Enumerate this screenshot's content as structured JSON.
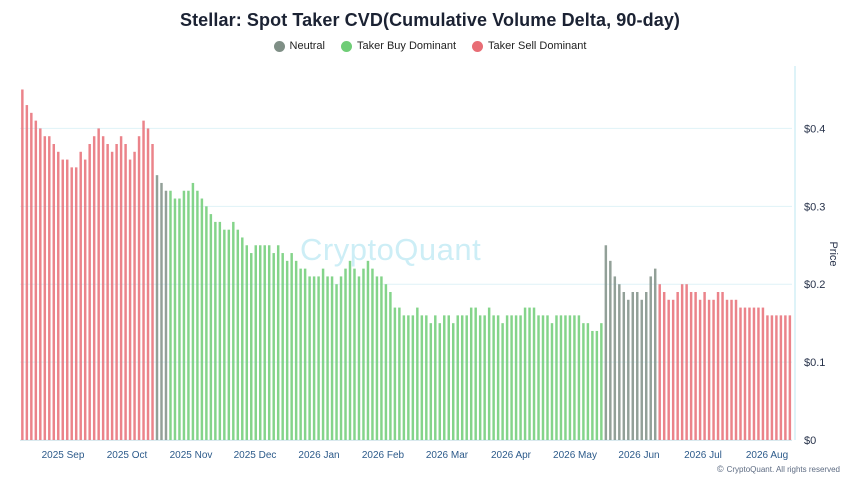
{
  "chart_data": {
    "type": "bar",
    "title": "Stellar: Spot Taker CVD(Cumulative Volume Delta, 90-day)",
    "ylabel": "Price",
    "ylim": [
      0,
      0.475
    ],
    "yticks": [
      "$0",
      "$0.1",
      "$0.2",
      "$0.3",
      "$0.4"
    ],
    "ytick_values": [
      0,
      0.1,
      0.2,
      0.3,
      0.4
    ],
    "xticks": [
      "2025 Sep",
      "2025 Oct",
      "2025 Nov",
      "2025 Dec",
      "2026 Jan",
      "2026 Feb",
      "2026 Mar",
      "2026 Apr",
      "2026 May",
      "2026 Jun",
      "2026 Jul",
      "2026 Aug"
    ],
    "grid": true,
    "legend_position": "top-center",
    "series": [
      {
        "name": "Neutral",
        "color": "#7f8f86"
      },
      {
        "name": "Taker Buy Dominant",
        "color": "#6fcd76"
      },
      {
        "name": "Taker Sell Dominant",
        "color": "#e86d75"
      }
    ],
    "segments": [
      {
        "state": "Taker Sell Dominant",
        "values": [
          0.45,
          0.43,
          0.42,
          0.41,
          0.4,
          0.39,
          0.39,
          0.38,
          0.37,
          0.36,
          0.36,
          0.35,
          0.35,
          0.37,
          0.36,
          0.38,
          0.39,
          0.4,
          0.39,
          0.38,
          0.37,
          0.38,
          0.39,
          0.38,
          0.36,
          0.37,
          0.39,
          0.41,
          0.4,
          0.38
        ]
      },
      {
        "state": "Neutral",
        "values": [
          0.34,
          0.33,
          0.32
        ]
      },
      {
        "state": "Taker Buy Dominant",
        "values": [
          0.32,
          0.31,
          0.31,
          0.32,
          0.32,
          0.33,
          0.32,
          0.31,
          0.3,
          0.29,
          0.28,
          0.28,
          0.27,
          0.27,
          0.28,
          0.27,
          0.26,
          0.25,
          0.24,
          0.25,
          0.25,
          0.25,
          0.25,
          0.24,
          0.25,
          0.24,
          0.23,
          0.24,
          0.23,
          0.22,
          0.22,
          0.21,
          0.21,
          0.21,
          0.22,
          0.21,
          0.21,
          0.2,
          0.21,
          0.22,
          0.23,
          0.22,
          0.21,
          0.22,
          0.23,
          0.22,
          0.21,
          0.21,
          0.2,
          0.19,
          0.17,
          0.17,
          0.16,
          0.16,
          0.16,
          0.17,
          0.16,
          0.16,
          0.15,
          0.16,
          0.15,
          0.16,
          0.16,
          0.15,
          0.16,
          0.16,
          0.16,
          0.17,
          0.17,
          0.16,
          0.16,
          0.17,
          0.16,
          0.16,
          0.15,
          0.16,
          0.16,
          0.16,
          0.16,
          0.17,
          0.17,
          0.17,
          0.16,
          0.16,
          0.16,
          0.15,
          0.16,
          0.16,
          0.16,
          0.16,
          0.16,
          0.16,
          0.15,
          0.15,
          0.14,
          0.14,
          0.15
        ]
      },
      {
        "state": "Neutral",
        "values": [
          0.25,
          0.23,
          0.21,
          0.2,
          0.19,
          0.18,
          0.19,
          0.19,
          0.18,
          0.19,
          0.21,
          0.22
        ]
      },
      {
        "state": "Taker Sell Dominant",
        "values": [
          0.2,
          0.19,
          0.18,
          0.18,
          0.19,
          0.2,
          0.2,
          0.19,
          0.19,
          0.18,
          0.19,
          0.18,
          0.18,
          0.19,
          0.19,
          0.18,
          0.18,
          0.18,
          0.17,
          0.17,
          0.17,
          0.17,
          0.17,
          0.17,
          0.16,
          0.16,
          0.16,
          0.16,
          0.16,
          0.16
        ]
      }
    ]
  },
  "watermark": "CryptoQuant",
  "footer": "CryptoQuant. All rights reserved",
  "footer_icon": "©"
}
